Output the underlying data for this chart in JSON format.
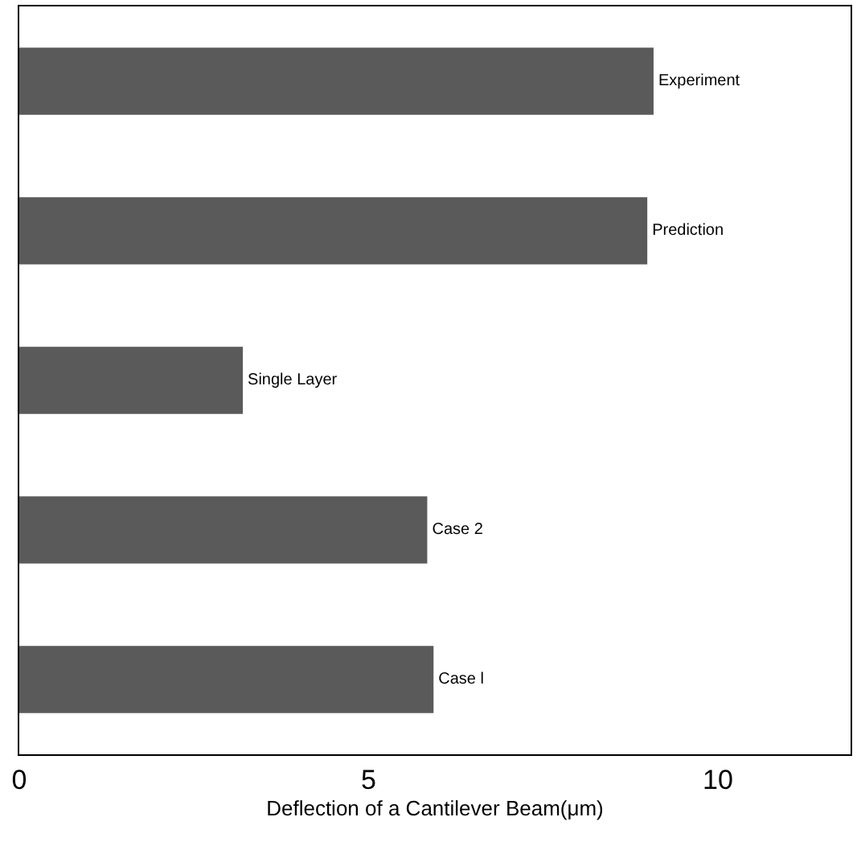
{
  "chart_data": {
    "type": "bar",
    "orientation": "horizontal",
    "xlabel": "Deflection of a Cantilever Beam(μm)",
    "categories": [
      "Experiment",
      "Prediction",
      "Single Layer",
      "Case 2",
      "Case l"
    ],
    "values": [
      9.08,
      8.99,
      3.2,
      5.84,
      5.93
    ],
    "color": "#5a5a5a",
    "xlim": [
      0,
      11.9
    ],
    "xticks": [
      0,
      5,
      10
    ],
    "grid": false,
    "legend": false,
    "tick_labels": "x"
  }
}
